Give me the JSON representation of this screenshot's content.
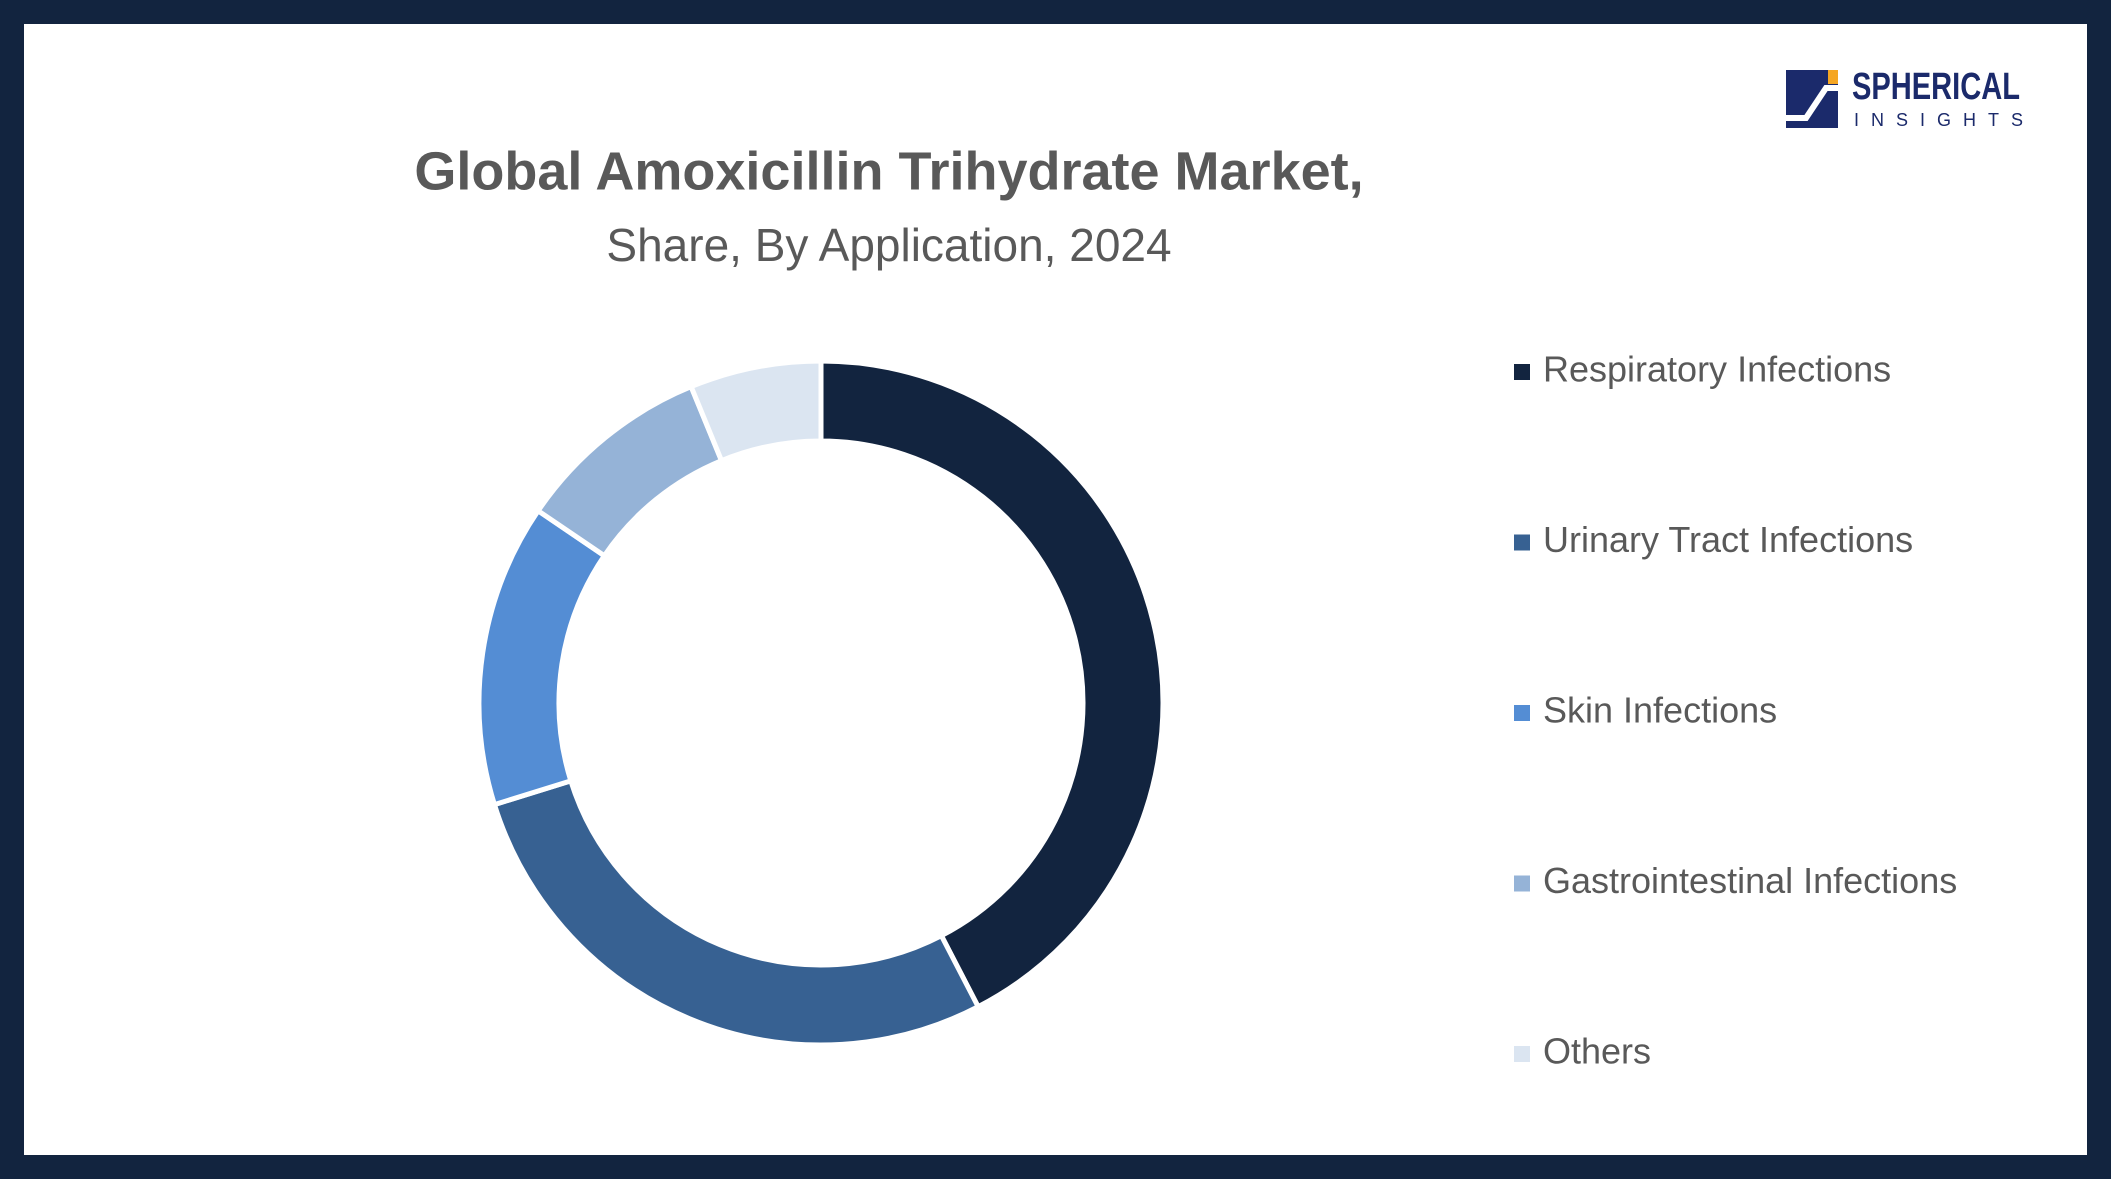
{
  "chart_data": {
    "type": "donut",
    "title": "Global Amoxicillin Trihydrate Market,",
    "subtitle": "Share, By Application, 2024",
    "categories": [
      "Respiratory Infections",
      "Urinary Tract Infections",
      "Skin Infections",
      "Gastrointestinal Infections",
      "Others"
    ],
    "values": [
      42.4,
      27.8,
      14.3,
      9.3,
      6.2
    ],
    "colors": [
      "#12243f",
      "#376192",
      "#548dd4",
      "#95b3d7",
      "#dbe5f1"
    ],
    "legend": "right"
  },
  "logo": {
    "name": "SPHERICAL",
    "tagline": "INSIGHTS"
  }
}
